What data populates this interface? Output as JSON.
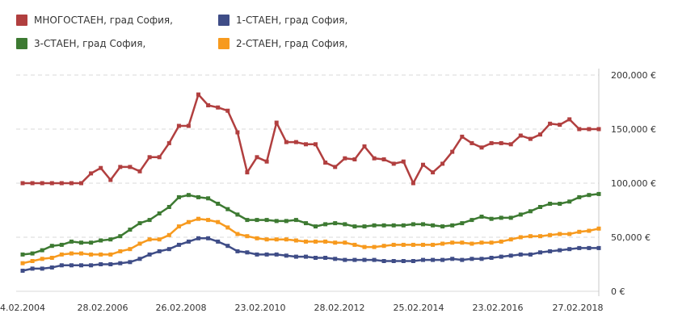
{
  "chart_data": {
    "type": "line",
    "grid": true,
    "legend_position": "top-left",
    "yaxis_side": "right",
    "ylim": [
      0,
      200000
    ],
    "x_ticks": [
      "4.02.2004",
      "28.02.2006",
      "26.02.2008",
      "23.02.2010",
      "28.02.2012",
      "25.02.2014",
      "23.02.2016",
      "27.02.2018"
    ],
    "y_ticks": [
      "0 €",
      "50,000 €",
      "100,000 €",
      "150,000 €",
      "200,000 €"
    ],
    "y_tick_values": [
      0,
      50000,
      100000,
      150000,
      200000
    ],
    "series": [
      {
        "name": "МНОГОСТАЕН, град София,",
        "color": "#b13f3f",
        "values": [
          100000,
          100000,
          100000,
          100000,
          100000,
          100000,
          100000,
          109000,
          114000,
          103000,
          115000,
          115000,
          111000,
          124000,
          124000,
          137000,
          153000,
          153000,
          182000,
          172000,
          170000,
          167000,
          147000,
          110000,
          124000,
          120000,
          156000,
          138000,
          138000,
          136000,
          136000,
          119000,
          115000,
          123000,
          122000,
          134000,
          123000,
          122000,
          118000,
          120000,
          100000,
          117000,
          110000,
          118000,
          129000,
          143000,
          137000,
          133000,
          137000,
          137000,
          136000,
          144000,
          141000,
          145000,
          155000,
          154000,
          159000,
          150000,
          150000,
          150000
        ]
      },
      {
        "name": "1-СТАЕН, град София,",
        "color": "#3f4d87",
        "values": [
          19000,
          21000,
          21000,
          22000,
          24000,
          24000,
          24000,
          24000,
          25000,
          25000,
          26000,
          27000,
          30000,
          34000,
          37000,
          39000,
          43000,
          46000,
          49000,
          49000,
          46000,
          42000,
          37000,
          36000,
          34000,
          34000,
          34000,
          33000,
          32000,
          32000,
          31000,
          31000,
          30000,
          29000,
          29000,
          29000,
          29000,
          28000,
          28000,
          28000,
          28000,
          29000,
          29000,
          29000,
          30000,
          29000,
          30000,
          30000,
          31000,
          32000,
          33000,
          34000,
          34000,
          36000,
          37000,
          38000,
          39000,
          40000,
          40000,
          40000
        ]
      },
      {
        "name": "3-СТАЕН, град София,",
        "color": "#3d7a32",
        "values": [
          34000,
          35000,
          38000,
          42000,
          43000,
          46000,
          45000,
          45000,
          47000,
          48000,
          51000,
          57000,
          63000,
          66000,
          72000,
          78000,
          87000,
          89000,
          87000,
          86000,
          81000,
          76000,
          71000,
          66000,
          66000,
          66000,
          65000,
          65000,
          66000,
          63000,
          60000,
          62000,
          63000,
          62000,
          60000,
          60000,
          61000,
          61000,
          61000,
          61000,
          62000,
          62000,
          61000,
          60000,
          61000,
          63000,
          66000,
          69000,
          67000,
          68000,
          68000,
          71000,
          74000,
          78000,
          81000,
          81000,
          83000,
          87000,
          89000,
          90000
        ]
      },
      {
        "name": "2-СТАЕН, град София,",
        "color": "#f79a1e",
        "values": [
          26000,
          28000,
          30000,
          31000,
          34000,
          35000,
          35000,
          34000,
          34000,
          34000,
          37000,
          39000,
          44000,
          48000,
          48000,
          52000,
          60000,
          64000,
          67000,
          66000,
          64000,
          59000,
          53000,
          51000,
          49000,
          48000,
          48000,
          48000,
          47000,
          46000,
          46000,
          46000,
          45000,
          45000,
          43000,
          41000,
          41000,
          42000,
          43000,
          43000,
          43000,
          43000,
          43000,
          44000,
          45000,
          45000,
          44000,
          45000,
          45000,
          46000,
          48000,
          50000,
          51000,
          51000,
          52000,
          53000,
          53000,
          55000,
          56000,
          58000
        ]
      }
    ]
  }
}
